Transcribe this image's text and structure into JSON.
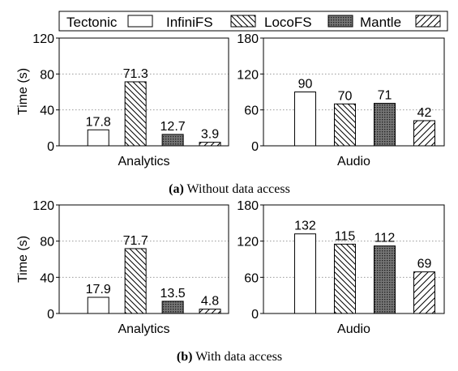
{
  "chart_data": [
    {
      "type": "bar",
      "panel_caption_label": "(a)",
      "panel_caption_text": "Without data access",
      "ylabel": "Time (s)",
      "series": [
        {
          "name": "Tectonic"
        },
        {
          "name": "InfiniFS"
        },
        {
          "name": "LocoFS"
        },
        {
          "name": "Mantle"
        }
      ],
      "subplots": [
        {
          "xlabel": "Analytics",
          "ylim": [
            0,
            120
          ],
          "yticks": [
            "0",
            "40",
            "80",
            "120"
          ],
          "values": [
            17.8,
            71.3,
            12.7,
            3.9
          ],
          "value_labels": [
            "17.8",
            "71.3",
            "12.7",
            "3.9"
          ]
        },
        {
          "xlabel": "Audio",
          "ylim": [
            0,
            180
          ],
          "yticks": [
            "0",
            "60",
            "120",
            "180"
          ],
          "values": [
            90,
            70,
            71,
            42
          ],
          "value_labels": [
            "90",
            "70",
            "71",
            "42"
          ]
        }
      ],
      "grid": "horizontal dotted"
    },
    {
      "type": "bar",
      "panel_caption_label": "(b)",
      "panel_caption_text": "With data access",
      "ylabel": "Time (s)",
      "subplots": [
        {
          "xlabel": "Analytics",
          "ylim": [
            0,
            120
          ],
          "yticks": [
            "0",
            "40",
            "80",
            "120"
          ],
          "values": [
            17.9,
            71.7,
            13.5,
            4.8
          ],
          "value_labels": [
            "17.9",
            "71.7",
            "13.5",
            "4.8"
          ]
        },
        {
          "xlabel": "Audio",
          "ylim": [
            0,
            180
          ],
          "yticks": [
            "0",
            "60",
            "120",
            "180"
          ],
          "values": [
            132,
            115,
            112,
            69
          ],
          "value_labels": [
            "132",
            "115",
            "112",
            "69"
          ]
        }
      ],
      "grid": "horizontal dotted"
    }
  ],
  "legend": {
    "items": [
      "Tectonic",
      "InfiniFS",
      "LocoFS",
      "Mantle"
    ],
    "placement": "top"
  }
}
